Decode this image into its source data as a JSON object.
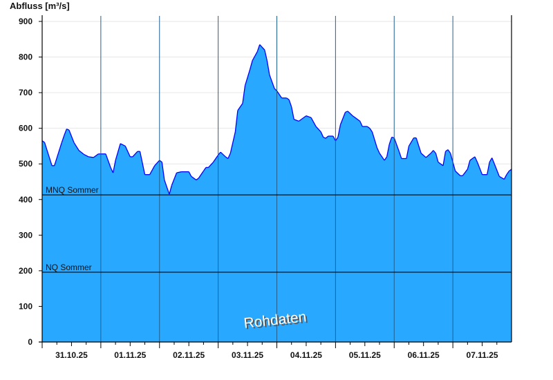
{
  "chart_data": {
    "type": "area",
    "ylabel": "Abfluss [m³/s]",
    "ylim": [
      0,
      900
    ],
    "yticks": [
      0,
      100,
      200,
      300,
      400,
      500,
      600,
      700,
      800,
      900
    ],
    "xlim": [
      "31.10.25 00:00",
      "08.11.25 00:00"
    ],
    "xtick_labels": [
      "31.10.25",
      "01.11.25",
      "02.11.25",
      "03.11.25",
      "04.11.25",
      "05.11.25",
      "06.11.25",
      "07.11.25"
    ],
    "grid": "horizontal",
    "colors": {
      "fill": "#29a8ff",
      "line": "#0000ff",
      "day_lines": "#1f5f8f",
      "grid": "#e6e6e6"
    },
    "reference_lines": [
      {
        "label": "MNQ Sommer",
        "value": 413
      },
      {
        "label": "NQ Sommer",
        "value": 196
      }
    ],
    "watermark": "Rohdaten",
    "points": [
      [
        "31.10.25 00:00",
        565
      ],
      [
        "31.10.25 01:00",
        560
      ],
      [
        "31.10.25 04:00",
        495
      ],
      [
        "31.10.25 05:00",
        495
      ],
      [
        "31.10.25 08:00",
        560
      ],
      [
        "31.10.25 09:00",
        580
      ],
      [
        "31.10.25 10:00",
        598
      ],
      [
        "31.10.25 11:00",
        595
      ],
      [
        "31.10.25 13:00",
        560
      ],
      [
        "31.10.25 15:00",
        538
      ],
      [
        "31.10.25 17:00",
        527
      ],
      [
        "31.10.25 19:00",
        520
      ],
      [
        "31.10.25 21:00",
        518
      ],
      [
        "31.10.25 23:00",
        528
      ],
      [
        "01.11.25 00:00",
        528
      ],
      [
        "01.11.25 02:00",
        528
      ],
      [
        "01.11.25 04:00",
        490
      ],
      [
        "01.11.25 05:00",
        475
      ],
      [
        "01.11.25 06:00",
        510
      ],
      [
        "01.11.25 08:00",
        557
      ],
      [
        "01.11.25 10:00",
        550
      ],
      [
        "01.11.25 12:00",
        520
      ],
      [
        "01.11.25 13:00",
        520
      ],
      [
        "01.11.25 15:00",
        535
      ],
      [
        "01.11.25 16:00",
        535
      ],
      [
        "01.11.25 18:00",
        470
      ],
      [
        "01.11.25 20:00",
        470
      ],
      [
        "01.11.25 22:00",
        495
      ],
      [
        "02.11.25 00:00",
        510
      ],
      [
        "02.11.25 01:00",
        505
      ],
      [
        "02.11.25 02:00",
        455
      ],
      [
        "02.11.25 04:00",
        415
      ],
      [
        "02.11.25 05:00",
        440
      ],
      [
        "02.11.25 07:00",
        475
      ],
      [
        "02.11.25 09:00",
        478
      ],
      [
        "02.11.25 12:00",
        478
      ],
      [
        "02.11.25 13:00",
        465
      ],
      [
        "02.11.25 15:00",
        455
      ],
      [
        "02.11.25 16:00",
        460
      ],
      [
        "02.11.25 18:00",
        480
      ],
      [
        "02.11.25 19:00",
        490
      ],
      [
        "02.11.25 20:00",
        490
      ],
      [
        "02.11.25 22:00",
        505
      ],
      [
        "03.11.25 00:00",
        525
      ],
      [
        "03.11.25 01:00",
        533
      ],
      [
        "03.11.25 03:00",
        520
      ],
      [
        "03.11.25 04:00",
        515
      ],
      [
        "03.11.25 05:00",
        530
      ],
      [
        "03.11.25 07:00",
        590
      ],
      [
        "03.11.25 08:00",
        650
      ],
      [
        "03.11.25 10:00",
        670
      ],
      [
        "03.11.25 11:00",
        720
      ],
      [
        "03.11.25 13:00",
        765
      ],
      [
        "03.11.25 14:00",
        790
      ],
      [
        "03.11.25 16:00",
        815
      ],
      [
        "03.11.25 17:00",
        835
      ],
      [
        "03.11.25 19:00",
        820
      ],
      [
        "03.11.25 20:00",
        790
      ],
      [
        "03.11.25 21:00",
        750
      ],
      [
        "03.11.25 23:00",
        712
      ],
      [
        "04.11.25 00:00",
        705
      ],
      [
        "04.11.25 02:00",
        685
      ],
      [
        "04.11.25 04:00",
        685
      ],
      [
        "04.11.25 05:00",
        680
      ],
      [
        "04.11.25 06:00",
        660
      ],
      [
        "04.11.25 07:00",
        625
      ],
      [
        "04.11.25 09:00",
        620
      ],
      [
        "04.11.25 10:00",
        625
      ],
      [
        "04.11.25 12:00",
        635
      ],
      [
        "04.11.25 14:00",
        630
      ],
      [
        "04.11.25 16:00",
        605
      ],
      [
        "04.11.25 18:00",
        590
      ],
      [
        "04.11.25 19:00",
        575
      ],
      [
        "04.11.25 20:00",
        572
      ],
      [
        "04.11.25 21:00",
        578
      ],
      [
        "04.11.25 23:00",
        578
      ],
      [
        "05.11.25 00:00",
        565
      ],
      [
        "05.11.25 01:00",
        575
      ],
      [
        "05.11.25 02:00",
        610
      ],
      [
        "05.11.25 04:00",
        645
      ],
      [
        "05.11.25 05:00",
        648
      ],
      [
        "05.11.25 07:00",
        635
      ],
      [
        "05.11.25 08:00",
        630
      ],
      [
        "05.11.25 10:00",
        620
      ],
      [
        "05.11.25 11:00",
        605
      ],
      [
        "05.11.25 13:00",
        605
      ],
      [
        "05.11.25 14:00",
        600
      ],
      [
        "05.11.25 15:00",
        590
      ],
      [
        "05.11.25 17:00",
        545
      ],
      [
        "05.11.25 18:00",
        530
      ],
      [
        "05.11.25 20:00",
        510
      ],
      [
        "05.11.25 21:00",
        520
      ],
      [
        "05.11.25 22:00",
        555
      ],
      [
        "05.11.25 23:00",
        575
      ],
      [
        "06.11.25 00:00",
        573
      ],
      [
        "06.11.25 02:00",
        535
      ],
      [
        "06.11.25 03:00",
        515
      ],
      [
        "06.11.25 05:00",
        515
      ],
      [
        "06.11.25 06:00",
        550
      ],
      [
        "06.11.25 08:00",
        573
      ],
      [
        "06.11.25 09:00",
        573
      ],
      [
        "06.11.25 11:00",
        530
      ],
      [
        "06.11.25 13:00",
        518
      ],
      [
        "06.11.25 15:00",
        530
      ],
      [
        "06.11.25 16:00",
        538
      ],
      [
        "06.11.25 17:00",
        530
      ],
      [
        "06.11.25 18:00",
        505
      ],
      [
        "06.11.25 20:00",
        495
      ],
      [
        "06.11.25 21:00",
        535
      ],
      [
        "06.11.25 22:00",
        540
      ],
      [
        "06.11.25 23:00",
        530
      ],
      [
        "07.11.25 01:00",
        480
      ],
      [
        "07.11.25 03:00",
        467
      ],
      [
        "07.11.25 04:00",
        467
      ],
      [
        "07.11.25 06:00",
        485
      ],
      [
        "07.11.25 07:00",
        510
      ],
      [
        "07.11.25 09:00",
        520
      ],
      [
        "07.11.25 10:00",
        505
      ],
      [
        "07.11.25 12:00",
        470
      ],
      [
        "07.11.25 14:00",
        470
      ],
      [
        "07.11.25 15:00",
        505
      ],
      [
        "07.11.25 16:00",
        517
      ],
      [
        "07.11.25 17:00",
        500
      ],
      [
        "07.11.25 19:00",
        465
      ],
      [
        "07.11.25 21:00",
        457
      ],
      [
        "07.11.25 22:00",
        470
      ],
      [
        "07.11.25 23:00",
        480
      ],
      [
        "08.11.25 00:00",
        485
      ]
    ]
  }
}
